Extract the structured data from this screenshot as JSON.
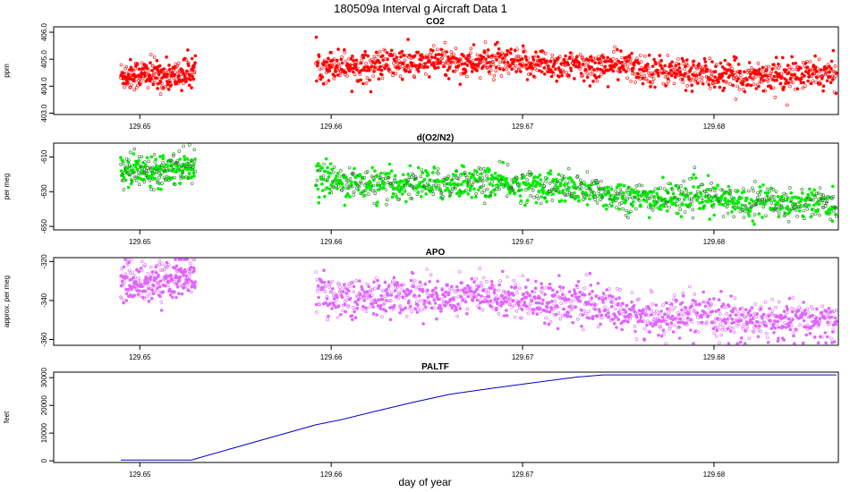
{
  "figure": {
    "title": "180509a   Interval g Aircraft Data 1",
    "xlabel": "day of year"
  },
  "chart_data": [
    {
      "type": "scatter",
      "title": "CO2",
      "ylabel": "ppm",
      "xlim": [
        129.6455,
        129.6865
      ],
      "ylim": [
        402.95,
        406.2
      ],
      "xticks": [
        129.65,
        129.66,
        129.67,
        129.68
      ],
      "yticks": [
        403.0,
        404.0,
        405.0,
        406.0
      ],
      "ytick_labels": [
        "403.0",
        "404.0",
        "405.0",
        "406.0"
      ],
      "color": "#ff0000",
      "series": [
        {
          "x": [
            129.6491,
            129.6503,
            129.6516,
            129.6528,
            129.6592,
            129.6605,
            129.6618,
            129.6631,
            129.6644,
            129.6657,
            129.667,
            129.6683,
            129.6696,
            129.6709,
            129.6722,
            129.6735,
            129.6748,
            129.6761,
            129.6774,
            129.6787,
            129.68,
            129.6813,
            129.6826,
            129.6839,
            129.6852,
            129.6864
          ],
          "y": [
            404.4,
            404.45,
            404.35,
            404.55,
            404.75,
            404.8,
            404.7,
            404.85,
            404.8,
            404.95,
            404.85,
            404.9,
            404.8,
            404.85,
            404.75,
            404.7,
            404.8,
            404.65,
            404.55,
            404.5,
            404.4,
            404.35,
            404.4,
            404.35,
            404.45,
            404.4
          ]
        }
      ]
    },
    {
      "type": "scatter",
      "title": "d(O2/N2)",
      "ylabel": "per meg",
      "xlim": [
        129.6455,
        129.6865
      ],
      "ylim": [
        -652,
        -602
      ],
      "xticks": [
        129.65,
        129.66,
        129.67,
        129.68
      ],
      "yticks": [
        -610,
        -630,
        -650
      ],
      "ytick_labels": [
        "-610",
        "-630",
        "-650"
      ],
      "color": "#00ee00",
      "series": [
        {
          "x": [
            129.6491,
            129.6503,
            129.6516,
            129.6528,
            129.6592,
            129.6605,
            129.6618,
            129.6631,
            129.6644,
            129.6657,
            129.667,
            129.6683,
            129.6696,
            129.6709,
            129.6722,
            129.6735,
            129.6748,
            129.6761,
            129.6774,
            129.6787,
            129.68,
            129.6813,
            129.6826,
            129.6839,
            129.6852,
            129.6864
          ],
          "y": [
            -617,
            -618,
            -616,
            -615,
            -622,
            -624,
            -626,
            -627,
            -625,
            -626,
            -624,
            -625,
            -626,
            -627,
            -628,
            -630,
            -632,
            -634,
            -634,
            -633,
            -634,
            -636,
            -635,
            -637,
            -636,
            -638
          ]
        }
      ]
    },
    {
      "type": "scatter",
      "title": "APO",
      "ylabel": "approx. per meg",
      "xlim": [
        129.6455,
        129.6865
      ],
      "ylim": [
        -363,
        -318
      ],
      "xticks": [
        129.65,
        129.66,
        129.67,
        129.68
      ],
      "yticks": [
        -320,
        -340,
        -360
      ],
      "ytick_labels": [
        "-320",
        "-340",
        "-360"
      ],
      "color": "#e066ff",
      "series": [
        {
          "x": [
            129.6491,
            129.6503,
            129.6516,
            129.6528,
            129.6592,
            129.6605,
            129.6618,
            129.6631,
            129.6644,
            129.6657,
            129.667,
            129.6683,
            129.6696,
            129.6709,
            129.6722,
            129.6735,
            129.6748,
            129.6761,
            129.6774,
            129.6787,
            129.68,
            129.6813,
            129.6826,
            129.6839,
            129.6852,
            129.6864
          ],
          "y": [
            -330,
            -331,
            -329,
            -327,
            -336,
            -338,
            -339,
            -338,
            -337,
            -339,
            -336,
            -338,
            -338,
            -340,
            -341,
            -342,
            -345,
            -348,
            -349,
            -347,
            -349,
            -350,
            -351,
            -350,
            -351,
            -352
          ]
        }
      ]
    },
    {
      "type": "line",
      "title": "PALTF",
      "ylabel": "feet",
      "xlim": [
        129.6455,
        129.6865
      ],
      "ylim": [
        -600,
        32000
      ],
      "xticks": [
        129.65,
        129.66,
        129.67,
        129.68
      ],
      "yticks": [
        0,
        10000,
        20000,
        30000
      ],
      "ytick_labels": [
        "0",
        "10000",
        "20000",
        "30000"
      ],
      "color": "#0000cc",
      "series": [
        {
          "x": [
            129.649,
            129.6527,
            129.656,
            129.6592,
            129.6605,
            129.6621,
            129.6642,
            129.6662,
            129.6685,
            129.6706,
            129.6728,
            129.6742,
            129.676,
            129.679,
            129.682,
            129.685,
            129.6864
          ],
          "y": [
            300,
            300,
            6800,
            13000,
            14800,
            17500,
            21000,
            24000,
            26300,
            28200,
            30200,
            31000,
            31000,
            31000,
            31000,
            31000,
            31000
          ]
        }
      ]
    }
  ]
}
